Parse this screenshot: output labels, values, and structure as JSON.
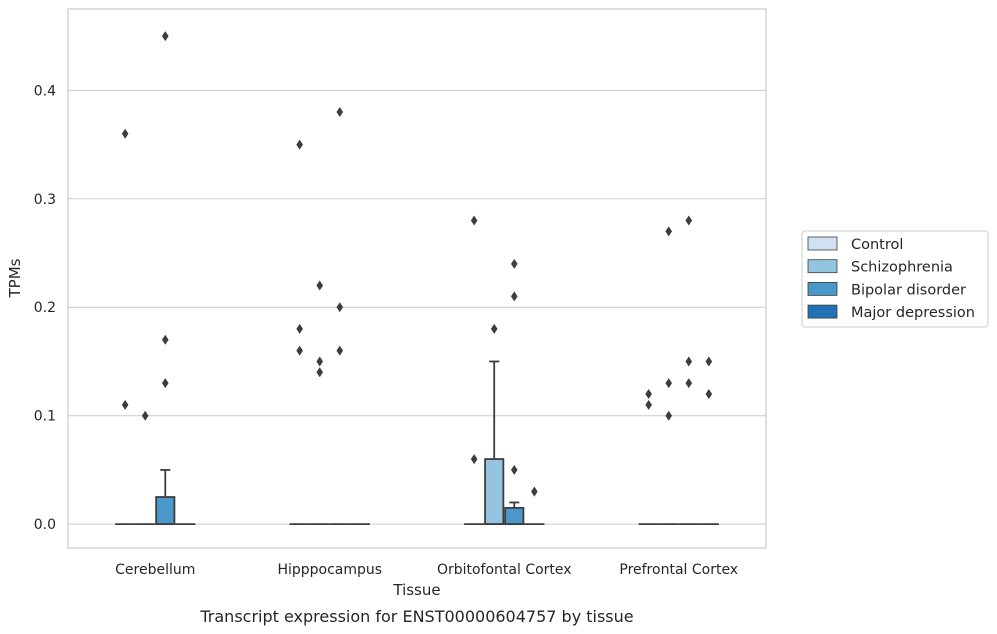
{
  "caption": "Transcript expression for ENST00000604757 by tissue",
  "chart_data": {
    "type": "box",
    "title": "",
    "xlabel": "Tissue",
    "ylabel": "TPMs",
    "ylim": [
      -0.022,
      0.475
    ],
    "yticks": [
      0.0,
      0.1,
      0.2,
      0.3,
      0.4
    ],
    "ytick_labels": [
      "0.0",
      "0.1",
      "0.2",
      "0.3",
      "0.4"
    ],
    "grid": "horizontal",
    "legend_position": "right",
    "categories": [
      "Cerebellum",
      "Hipppocampus",
      "Orbitofontal Cortex",
      "Prefrontal Cortex"
    ],
    "series": [
      {
        "name": "Control",
        "color": "#d0e1f2",
        "boxes": [
          {
            "q1": 0,
            "median": 0,
            "q3": 0,
            "whisker_low": 0,
            "whisker_high": 0,
            "outliers": [
              0.36,
              0.11
            ]
          },
          {
            "q1": 0,
            "median": 0,
            "q3": 0,
            "whisker_low": 0,
            "whisker_high": 0,
            "outliers": [
              0.35,
              0.18,
              0.16
            ]
          },
          {
            "q1": 0,
            "median": 0,
            "q3": 0,
            "whisker_low": 0,
            "whisker_high": 0,
            "outliers": [
              0.28,
              0.06
            ]
          },
          {
            "q1": 0,
            "median": 0,
            "q3": 0,
            "whisker_low": 0,
            "whisker_high": 0,
            "outliers": [
              0.12,
              0.11
            ]
          }
        ]
      },
      {
        "name": "Schizophrenia",
        "color": "#94c4df",
        "boxes": [
          {
            "q1": 0,
            "median": 0,
            "q3": 0,
            "whisker_low": 0,
            "whisker_high": 0,
            "outliers": [
              0.1
            ]
          },
          {
            "q1": 0,
            "median": 0,
            "q3": 0,
            "whisker_low": 0,
            "whisker_high": 0,
            "outliers": [
              0.22,
              0.15,
              0.14
            ]
          },
          {
            "q1": 0,
            "median": 0,
            "q3": 0.06,
            "whisker_low": 0,
            "whisker_high": 0.15,
            "outliers": [
              0.18
            ]
          },
          {
            "q1": 0,
            "median": 0,
            "q3": 0,
            "whisker_low": 0,
            "whisker_high": 0,
            "outliers": [
              0.27,
              0.13,
              0.1
            ]
          }
        ]
      },
      {
        "name": "Bipolar disorder",
        "color": "#4a98c9",
        "boxes": [
          {
            "q1": 0,
            "median": 0,
            "q3": 0.025,
            "whisker_low": 0,
            "whisker_high": 0.05,
            "outliers": [
              0.45,
              0.17,
              0.13
            ]
          },
          {
            "q1": 0,
            "median": 0,
            "q3": 0,
            "whisker_low": 0,
            "whisker_high": 0,
            "outliers": [
              0.38,
              0.2,
              0.16
            ]
          },
          {
            "q1": 0,
            "median": 0,
            "q3": 0.015,
            "whisker_low": 0,
            "whisker_high": 0.02,
            "outliers": [
              0.24,
              0.21,
              0.05
            ]
          },
          {
            "q1": 0,
            "median": 0,
            "q3": 0,
            "whisker_low": 0,
            "whisker_high": 0,
            "outliers": [
              0.28,
              0.15,
              0.13
            ]
          }
        ]
      },
      {
        "name": "Major depression",
        "color": "#2171b5",
        "boxes": [
          {
            "q1": 0,
            "median": 0,
            "q3": 0,
            "whisker_low": 0,
            "whisker_high": 0,
            "outliers": []
          },
          {
            "q1": 0,
            "median": 0,
            "q3": 0,
            "whisker_low": 0,
            "whisker_high": 0,
            "outliers": []
          },
          {
            "q1": 0,
            "median": 0,
            "q3": 0,
            "whisker_low": 0,
            "whisker_high": 0,
            "outliers": [
              0.03
            ]
          },
          {
            "q1": 0,
            "median": 0,
            "q3": 0,
            "whisker_low": 0,
            "whisker_high": 0,
            "outliers": [
              0.15,
              0.12
            ]
          }
        ]
      }
    ]
  }
}
